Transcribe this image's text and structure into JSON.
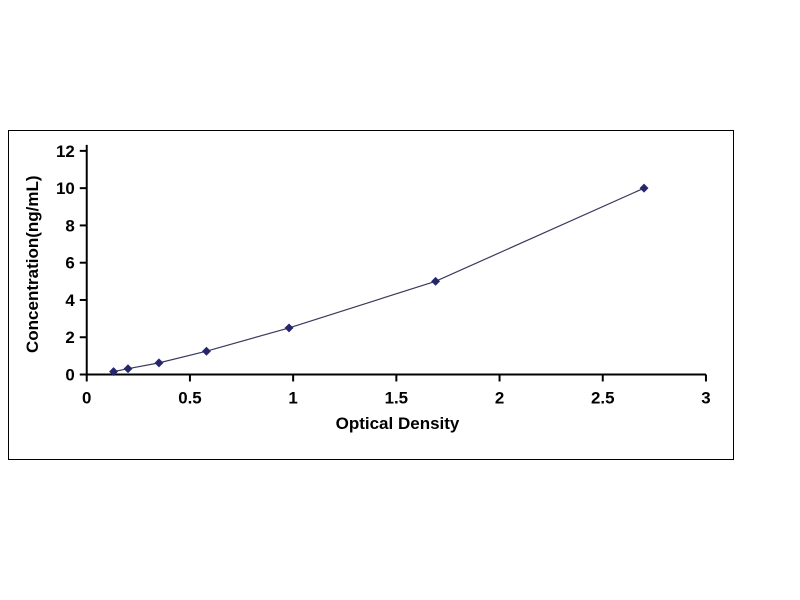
{
  "page": {
    "background_color": "#ffffff",
    "panel_border_color": "#000000"
  },
  "chart_data": {
    "type": "scatter",
    "description": "ELISA standard curve: concentration vs optical density with diamond markers connected by a thin line",
    "x": [
      0.13,
      0.2,
      0.35,
      0.58,
      0.98,
      1.69,
      2.7
    ],
    "y": [
      0.156,
      0.312,
      0.625,
      1.25,
      2.5,
      5.0,
      10.0
    ],
    "xlabel": "Optical Density",
    "ylabel": "Concentration(ng/mL)",
    "xlim": [
      0,
      3
    ],
    "ylim": [
      0,
      12
    ],
    "xticks": [
      0,
      0.5,
      1,
      1.5,
      2,
      2.5,
      3
    ],
    "xtick_labels": [
      "0",
      "0.5",
      "1",
      "1.5",
      "2",
      "2.5",
      "3"
    ],
    "yticks": [
      0,
      2,
      4,
      6,
      8,
      10,
      12
    ],
    "ytick_labels": [
      "0",
      "2",
      "4",
      "6",
      "8",
      "10",
      "12"
    ],
    "grid": false,
    "legend": null,
    "marker": "diamond",
    "marker_color": "#26266E",
    "line_color": "#3A3A5C",
    "axis_color": "#000000"
  }
}
